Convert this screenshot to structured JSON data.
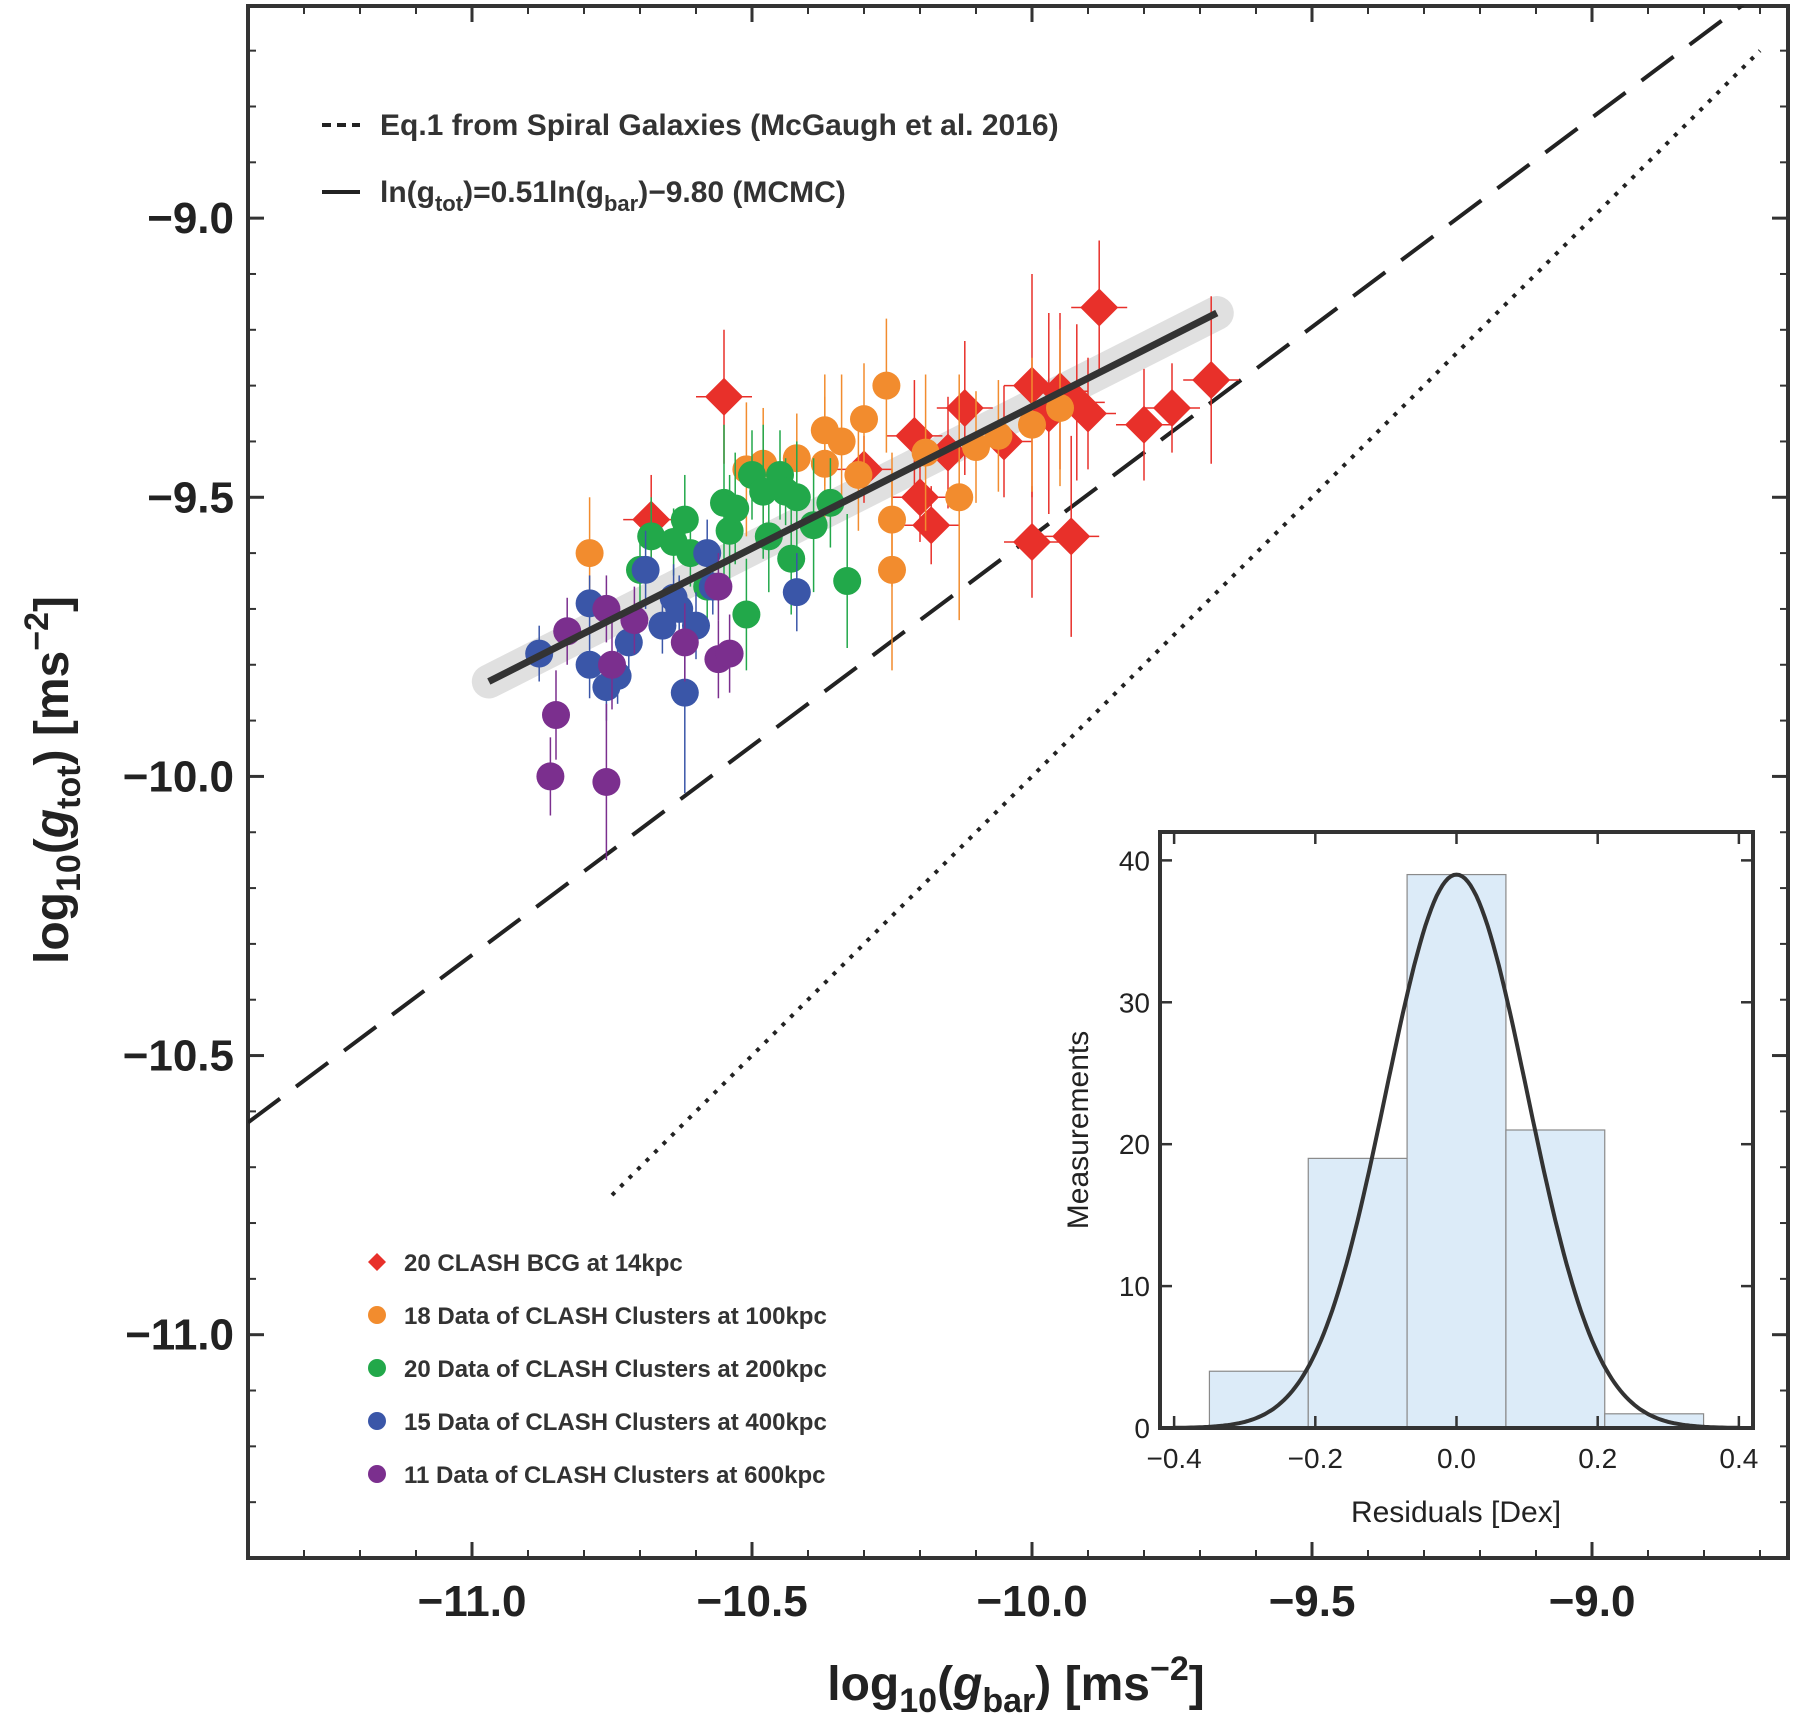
{
  "colors": {
    "bcg": "#e8302a",
    "c100": "#f28c2e",
    "c200": "#22a84a",
    "c400": "#3a56a8",
    "c600": "#7b2f8e",
    "fit": "#333333",
    "band": "#c8c8c8",
    "hist_fill": "#dcebf8"
  },
  "chart_data": {
    "type": "scatter",
    "xlabel_main": "log",
    "xlabel_sub": "10",
    "xlabel_var": "g",
    "xlabel_var_sub": "bar",
    "xlabel_units": "[ms",
    "xlabel_units_exp": "−2",
    "xlabel_units_end": "]",
    "ylabel_main": "log",
    "ylabel_sub": "10",
    "ylabel_var": "g",
    "ylabel_var_sub": "tot",
    "ylabel_units": "[ms",
    "ylabel_units_exp": "−2",
    "ylabel_units_end": "]",
    "xlim": [
      -11.4,
      -8.65
    ],
    "ylim": [
      -11.4,
      -8.62
    ],
    "xticks": [
      -11.0,
      -10.5,
      -10.0,
      -9.5,
      -9.0
    ],
    "xtick_labels": [
      "−11.0",
      "−10.5",
      "−10.0",
      "−9.5",
      "−9.0"
    ],
    "yticks": [
      -11.0,
      -10.5,
      -10.0,
      -9.5,
      -9.0
    ],
    "ytick_labels": [
      "−11.0",
      "−10.5",
      "−10.0",
      "−9.5",
      "−9.0"
    ],
    "fit_line": {
      "x": [
        -10.97,
        -9.67
      ],
      "y": [
        -9.83,
        -9.17
      ]
    },
    "mcgaugh_line": {
      "x": [
        -11.4,
        -8.65
      ],
      "slope": 0.75,
      "intercept_at_x0": -10.62
    },
    "one_to_one": {
      "x": [
        -10.75,
        -8.7
      ]
    },
    "legend_top": [
      {
        "style": "dashed",
        "label": "Eq.1 from Spiral Galaxies (McGaugh et al. 2016)"
      },
      {
        "style": "solid",
        "label_pre": "ln(g",
        "label_sub1": "tot",
        "label_mid": ")=0.51ln(g",
        "label_sub2": "bar",
        "label_post": ")−9.80 (MCMC)"
      }
    ],
    "series": [
      {
        "name": "20 CLASH BCG at 14kpc",
        "marker": "diamond",
        "color_key": "bcg",
        "points": [
          [
            -10.55,
            -9.32,
            0.12
          ],
          [
            -10.68,
            -9.54,
            0.08
          ],
          [
            -10.21,
            -9.39,
            0.1
          ],
          [
            -10.18,
            -9.55,
            0.07
          ],
          [
            -10.12,
            -9.34,
            0.12
          ],
          [
            -10.0,
            -9.3,
            0.2
          ],
          [
            -9.97,
            -9.35,
            0.18
          ],
          [
            -9.92,
            -9.33,
            0.14
          ],
          [
            -9.88,
            -9.16,
            0.12
          ],
          [
            -9.8,
            -9.37,
            0.1
          ],
          [
            -9.75,
            -9.34,
            0.08
          ],
          [
            -9.68,
            -9.29,
            0.15
          ],
          [
            -10.0,
            -9.58,
            0.1
          ],
          [
            -9.93,
            -9.57,
            0.18
          ],
          [
            -10.2,
            -9.5,
            0.08
          ],
          [
            -10.15,
            -9.42,
            0.1
          ],
          [
            -9.95,
            -9.31,
            0.14
          ],
          [
            -10.05,
            -9.4,
            0.1
          ],
          [
            -9.9,
            -9.35,
            0.1
          ],
          [
            -10.3,
            -9.45,
            0.06
          ]
        ]
      },
      {
        "name": "18 Data of CLASH Clusters at 100kpc",
        "marker": "circle",
        "color_key": "c100",
        "points": [
          [
            -10.79,
            -9.6,
            0.1
          ],
          [
            -10.51,
            -9.45,
            0.12
          ],
          [
            -10.48,
            -9.44,
            0.1
          ],
          [
            -10.42,
            -9.43,
            0.08
          ],
          [
            -10.37,
            -9.38,
            0.1
          ],
          [
            -10.37,
            -9.44,
            0.12
          ],
          [
            -10.34,
            -9.4,
            0.12
          ],
          [
            -10.31,
            -9.46,
            0.1
          ],
          [
            -10.3,
            -9.36,
            0.1
          ],
          [
            -10.26,
            -9.3,
            0.12
          ],
          [
            -10.25,
            -9.54,
            0.12
          ],
          [
            -10.25,
            -9.63,
            0.18
          ],
          [
            -10.19,
            -9.42,
            0.14
          ],
          [
            -10.13,
            -9.5,
            0.22
          ],
          [
            -10.0,
            -9.37,
            0.12
          ],
          [
            -9.95,
            -9.34,
            0.14
          ],
          [
            -10.1,
            -9.41,
            0.1
          ],
          [
            -10.06,
            -9.39,
            0.1
          ]
        ]
      },
      {
        "name": "20 Data of CLASH Clusters at 200kpc",
        "marker": "circle",
        "color_key": "c200",
        "points": [
          [
            -10.68,
            -9.57,
            0.07
          ],
          [
            -10.7,
            -9.63,
            0.06
          ],
          [
            -10.62,
            -9.54,
            0.08
          ],
          [
            -10.61,
            -9.6,
            0.06
          ],
          [
            -10.55,
            -9.51,
            0.14
          ],
          [
            -10.54,
            -9.56,
            0.1
          ],
          [
            -10.53,
            -9.52,
            0.1
          ],
          [
            -10.5,
            -9.46,
            0.08
          ],
          [
            -10.48,
            -9.49,
            0.12
          ],
          [
            -10.45,
            -9.46,
            0.08
          ],
          [
            -10.44,
            -9.49,
            0.06
          ],
          [
            -10.42,
            -9.5,
            0.1
          ],
          [
            -10.43,
            -9.61,
            0.1
          ],
          [
            -10.36,
            -9.51,
            0.08
          ],
          [
            -10.33,
            -9.65,
            0.12
          ],
          [
            -10.51,
            -9.71,
            0.1
          ],
          [
            -10.39,
            -9.55,
            0.12
          ],
          [
            -10.58,
            -9.66,
            0.08
          ],
          [
            -10.47,
            -9.57,
            0.1
          ],
          [
            -10.64,
            -9.58,
            0.06
          ]
        ]
      },
      {
        "name": "15 Data of CLASH Clusters at 400kpc",
        "marker": "circle",
        "color_key": "c400",
        "points": [
          [
            -10.88,
            -9.78,
            0.05
          ],
          [
            -10.79,
            -9.69,
            0.05
          ],
          [
            -10.79,
            -9.8,
            0.06
          ],
          [
            -10.76,
            -9.84,
            0.06
          ],
          [
            -10.74,
            -9.82,
            0.05
          ],
          [
            -10.69,
            -9.63,
            0.07
          ],
          [
            -10.64,
            -9.68,
            0.06
          ],
          [
            -10.63,
            -9.7,
            0.06
          ],
          [
            -10.6,
            -9.73,
            0.06
          ],
          [
            -10.58,
            -9.6,
            0.06
          ],
          [
            -10.62,
            -9.85,
            0.18
          ],
          [
            -10.57,
            -9.66,
            0.05
          ],
          [
            -10.42,
            -9.67,
            0.07
          ],
          [
            -10.72,
            -9.76,
            0.06
          ],
          [
            -10.66,
            -9.73,
            0.05
          ]
        ]
      },
      {
        "name": "11 Data of CLASH Clusters at 600kpc",
        "marker": "circle",
        "color_key": "c600",
        "points": [
          [
            -10.85,
            -9.89,
            0.08
          ],
          [
            -10.86,
            -10.0,
            0.07
          ],
          [
            -10.76,
            -10.01,
            0.14
          ],
          [
            -10.75,
            -9.8,
            0.08
          ],
          [
            -10.71,
            -9.72,
            0.06
          ],
          [
            -10.62,
            -9.76,
            0.07
          ],
          [
            -10.56,
            -9.79,
            0.07
          ],
          [
            -10.54,
            -9.78,
            0.07
          ],
          [
            -10.56,
            -9.66,
            0.06
          ],
          [
            -10.83,
            -9.74,
            0.06
          ],
          [
            -10.76,
            -9.7,
            0.06
          ]
        ]
      }
    ],
    "inset": {
      "type": "bar",
      "xlabel": "Residuals [Dex]",
      "ylabel": "Measurements",
      "xlim": [
        -0.42,
        0.42
      ],
      "ylim": [
        0,
        42
      ],
      "xticks": [
        -0.4,
        -0.2,
        0.0,
        0.2,
        0.4
      ],
      "xtick_labels": [
        "−0.4",
        "−0.2",
        "0.0",
        "0.2",
        "0.4"
      ],
      "yticks": [
        0,
        10,
        20,
        30,
        40
      ],
      "ytick_labels": [
        "0",
        "10",
        "20",
        "30",
        "40"
      ],
      "bin_edges": [
        -0.35,
        -0.21,
        -0.07,
        0.07,
        0.21,
        0.35
      ],
      "counts": [
        4,
        19,
        39,
        21,
        1
      ],
      "gaussian": {
        "amplitude": 39,
        "mean": 0.0,
        "sigma": 0.1
      }
    }
  }
}
